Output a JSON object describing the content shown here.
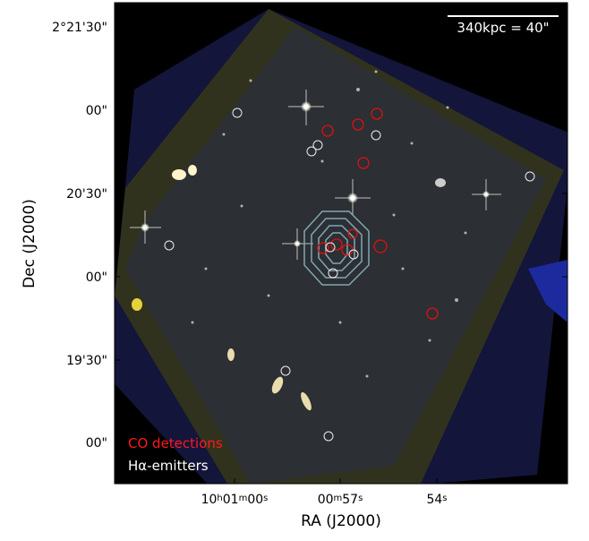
{
  "figure": {
    "scale_bar": "340kpc = 40\"",
    "legend": [
      "CO detections",
      "Hα-emitters"
    ],
    "y_axis_label": "Dec (J2000)",
    "x_axis_label": "RA (J2000)",
    "y_ticks": [
      "2°21'30\"",
      "00\"",
      "20'30\"",
      "00\"",
      "19'30\"",
      "00\""
    ],
    "x_ticks": [
      [
        "10",
        "h",
        "01",
        "m",
        "00",
        "s"
      ],
      [
        "00",
        "m",
        "57",
        "s"
      ],
      [
        "54",
        "s"
      ]
    ]
  }
}
